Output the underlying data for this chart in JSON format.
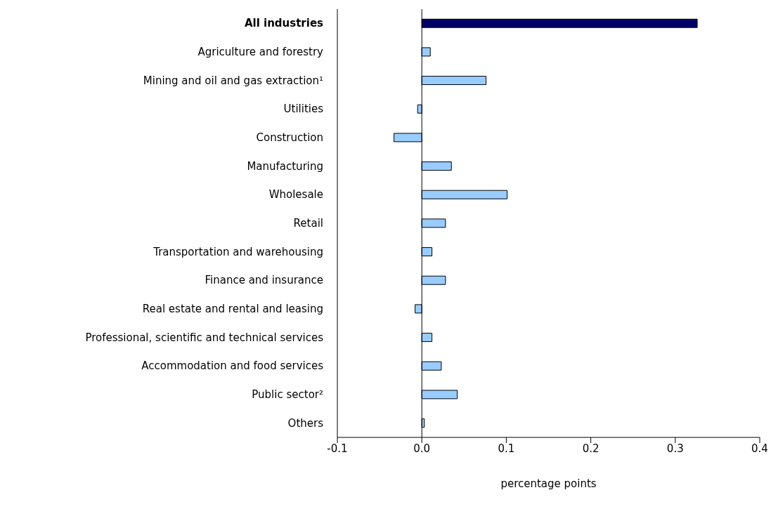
{
  "chart_data": {
    "type": "bar",
    "orientation": "horizontal",
    "xlabel": "percentage points",
    "categories": [
      "All industries",
      "Agriculture and forestry",
      "Mining and oil and gas extraction¹",
      "Utilities",
      "Construction",
      "Manufacturing",
      "Wholesale",
      "Retail",
      "Transportation and warehousing",
      "Finance and insurance",
      "Real estate and rental and leasing",
      "Professional, scientific and technical services",
      "Accommodation and food services",
      "Public sector²",
      "Others"
    ],
    "values": [
      0.326,
      0.01,
      0.076,
      -0.005,
      -0.033,
      0.035,
      0.101,
      0.028,
      0.012,
      0.028,
      -0.008,
      0.012,
      0.023,
      0.042,
      0.003
    ],
    "colors": [
      "#000066",
      "#99ccff",
      "#99ccff",
      "#99ccff",
      "#99ccff",
      "#99ccff",
      "#99ccff",
      "#99ccff",
      "#99ccff",
      "#99ccff",
      "#99ccff",
      "#99ccff",
      "#99ccff",
      "#99ccff",
      "#99ccff"
    ],
    "xlim": [
      -0.1,
      0.4
    ],
    "xticks": [
      {
        "value": -0.1,
        "label": "-0.1"
      },
      {
        "value": 0,
        "label": "0.0"
      },
      {
        "value": 0.1,
        "label": "0.1"
      },
      {
        "value": 0.2,
        "label": "0.2"
      },
      {
        "value": 0.3,
        "label": "0.3"
      },
      {
        "value": 0.4,
        "label": "0.4"
      }
    ],
    "ref_lines": [
      {
        "axis": "x",
        "value": 0,
        "color": "#000000"
      }
    ]
  }
}
